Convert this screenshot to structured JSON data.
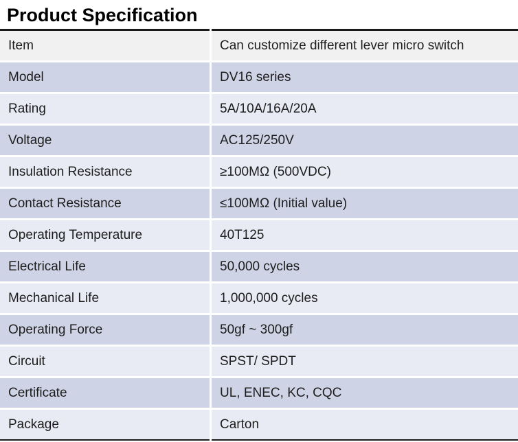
{
  "page_title": "Product Specification",
  "colors": {
    "header_row_bg": "#f1f1f1",
    "band_dark_bg": "#cfd3e6",
    "band_light_bg": "#e8eaf4",
    "border_color": "#1a1a1a",
    "text_color": "#1d1d1d",
    "row_gap_color": "#ffffff"
  },
  "spec_table": {
    "rows": [
      {
        "label": "Item",
        "value": "Can customize different lever micro switch"
      },
      {
        "label": "Model",
        "value": "DV16 series"
      },
      {
        "label": "Rating",
        "value": "5A/10A/16A/20A"
      },
      {
        "label": "Voltage",
        "value": "AC125/250V"
      },
      {
        "label": "Insulation Resistance",
        "value": "≥100MΩ (500VDC)"
      },
      {
        "label": "Contact Resistance",
        "value": "≤100MΩ (Initial value)"
      },
      {
        "label": "Operating Temperature",
        "value": "40T125"
      },
      {
        "label": "Electrical Life",
        "value": "50,000 cycles"
      },
      {
        "label": "Mechanical Life",
        "value": "1,000,000 cycles"
      },
      {
        "label": "Operating Force",
        "value": "50gf ~ 300gf"
      },
      {
        "label": "Circuit",
        "value": "SPST/ SPDT"
      },
      {
        "label": "Certificate",
        "value": "UL, ENEC, KC, CQC"
      },
      {
        "label": "Package",
        "value": "Carton"
      }
    ]
  }
}
